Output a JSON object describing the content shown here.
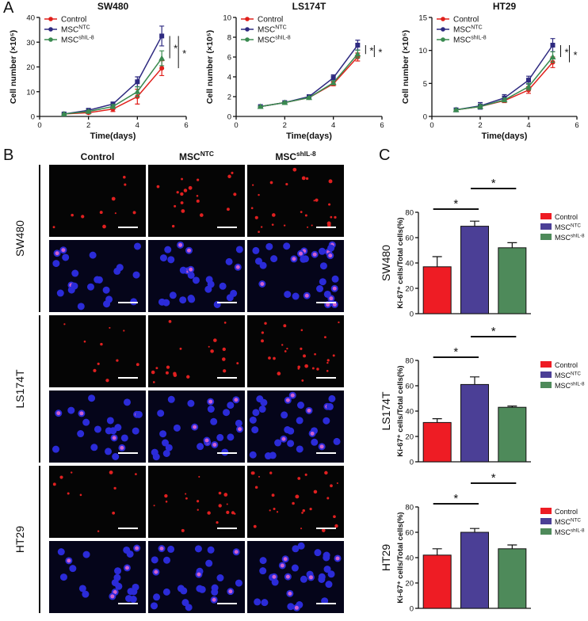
{
  "panels": {
    "a": "A",
    "b": "B",
    "c": "C"
  },
  "images": {
    "columns": [
      {
        "name": "Control"
      },
      {
        "name": "MSC",
        "sup": "NTC"
      },
      {
        "name": "MSC",
        "sup": "shIL-8"
      }
    ],
    "rows": [
      "SW480",
      "LS174T",
      "HT29"
    ]
  },
  "chart_data": [
    {
      "type": "line",
      "title": "SW480",
      "xlabel": "Time(days)",
      "ylabel": "Cell number (×10⁵)",
      "x": [
        1,
        2,
        3,
        4,
        5
      ],
      "xlim": [
        0,
        6
      ],
      "xticks": [
        0,
        2,
        4,
        6
      ],
      "ylim": [
        0,
        40
      ],
      "yticks": [
        0,
        10,
        20,
        30,
        40
      ],
      "series": [
        {
          "name": "Control",
          "color": "#e0201b",
          "marker": "circle",
          "values": [
            1,
            1.5,
            3,
            8,
            19.5
          ],
          "errors": [
            0.3,
            0.5,
            1,
            3,
            3
          ]
        },
        {
          "name": "MSC",
          "sup": "NTC",
          "color": "#2e2a80",
          "marker": "square",
          "values": [
            1,
            2.5,
            5,
            14,
            32.5
          ],
          "errors": [
            0.3,
            0.5,
            0.8,
            2,
            4
          ]
        },
        {
          "name": "MSC",
          "sup": "shIL-8",
          "color": "#3a8a50",
          "marker": "triangle",
          "values": [
            1,
            2,
            4,
            10,
            23.5
          ],
          "errors": [
            0.3,
            0.5,
            0.8,
            2,
            3
          ]
        }
      ],
      "annotations": [
        "*",
        "*"
      ]
    },
    {
      "type": "line",
      "title": "LS174T",
      "xlabel": "Time(days)",
      "ylabel": "Cell number (×10⁵)",
      "x": [
        1,
        2,
        3,
        4,
        5
      ],
      "xlim": [
        0,
        6
      ],
      "xticks": [
        0,
        2,
        4,
        6
      ],
      "ylim": [
        0,
        10
      ],
      "yticks": [
        0,
        2,
        4,
        6,
        8,
        10
      ],
      "series": [
        {
          "name": "Control",
          "color": "#e0201b",
          "marker": "circle",
          "values": [
            1,
            1.4,
            1.9,
            3.3,
            6
          ],
          "errors": [
            0.05,
            0.1,
            0.1,
            0.2,
            0.4
          ]
        },
        {
          "name": "MSC",
          "sup": "NTC",
          "color": "#2e2a80",
          "marker": "square",
          "values": [
            1,
            1.4,
            2,
            3.9,
            7.2
          ],
          "errors": [
            0.05,
            0.1,
            0.1,
            0.3,
            0.5
          ]
        },
        {
          "name": "MSC",
          "sup": "shIL-8",
          "color": "#3a8a50",
          "marker": "triangle",
          "values": [
            1,
            1.4,
            1.9,
            3.4,
            6.3
          ],
          "errors": [
            0.05,
            0.1,
            0.1,
            0.2,
            0.4
          ]
        }
      ],
      "annotations": [
        "*",
        "*"
      ]
    },
    {
      "type": "line",
      "title": "HT29",
      "xlabel": "Time(days)",
      "ylabel": "Cell number (×10⁵)",
      "x": [
        1,
        2,
        3,
        4,
        5
      ],
      "xlim": [
        0,
        6
      ],
      "xticks": [
        0,
        2,
        4,
        6
      ],
      "ylim": [
        0,
        15
      ],
      "yticks": [
        0,
        5,
        10,
        15
      ],
      "series": [
        {
          "name": "Control",
          "color": "#e0201b",
          "marker": "circle",
          "values": [
            1,
            1.5,
            2.4,
            4,
            8.2
          ],
          "errors": [
            0.1,
            0.3,
            0.3,
            0.5,
            0.8
          ]
        },
        {
          "name": "MSC",
          "sup": "NTC",
          "color": "#2e2a80",
          "marker": "square",
          "values": [
            1,
            1.6,
            2.8,
            5.5,
            10.8
          ],
          "errors": [
            0.1,
            0.5,
            0.5,
            0.6,
            1
          ]
        },
        {
          "name": "MSC",
          "sup": "shIL-8",
          "color": "#3a8a50",
          "marker": "triangle",
          "values": [
            1,
            1.5,
            2.5,
            4.5,
            9
          ],
          "errors": [
            0.1,
            0.3,
            0.3,
            0.5,
            0.8
          ]
        }
      ],
      "annotations": [
        "*",
        "*"
      ]
    },
    {
      "type": "bar",
      "title": "SW480",
      "ylabel": "Ki-67⁺ cells/Total cells(%)",
      "ylim": [
        0,
        80
      ],
      "yticks": [
        0,
        20,
        40,
        60,
        80
      ],
      "series": [
        {
          "name": "Control",
          "color": "#ee1c24",
          "values": [
            37
          ],
          "errors": [
            8
          ]
        },
        {
          "name": "MSC",
          "sup": "NTC",
          "color": "#4b3f96",
          "values": [
            69
          ],
          "errors": [
            4
          ]
        },
        {
          "name": "MSC",
          "sup": "shIL-8",
          "color": "#4e8a5a",
          "values": [
            52
          ],
          "errors": [
            4
          ]
        }
      ],
      "annotations": [
        "*",
        "*"
      ]
    },
    {
      "type": "bar",
      "title": "LS174T",
      "ylabel": "Ki-67⁺ cells/Total cells(%)",
      "ylim": [
        0,
        80
      ],
      "yticks": [
        0,
        20,
        40,
        60,
        80
      ],
      "series": [
        {
          "name": "Control",
          "color": "#ee1c24",
          "values": [
            31
          ],
          "errors": [
            3
          ]
        },
        {
          "name": "MSC",
          "sup": "NTC",
          "color": "#4b3f96",
          "values": [
            61
          ],
          "errors": [
            6
          ]
        },
        {
          "name": "MSC",
          "sup": "shIL-8",
          "color": "#4e8a5a",
          "values": [
            43
          ],
          "errors": [
            1
          ]
        }
      ],
      "annotations": [
        "*",
        "*"
      ]
    },
    {
      "type": "bar",
      "title": "HT29",
      "ylabel": "Ki-67⁺ cells/Total cells(%)",
      "ylim": [
        0,
        80
      ],
      "yticks": [
        0,
        20,
        40,
        60,
        80
      ],
      "series": [
        {
          "name": "Control",
          "color": "#ee1c24",
          "values": [
            42
          ],
          "errors": [
            5
          ]
        },
        {
          "name": "MSC",
          "sup": "NTC",
          "color": "#4b3f96",
          "values": [
            60
          ],
          "errors": [
            3
          ]
        },
        {
          "name": "MSC",
          "sup": "shIL-8",
          "color": "#4e8a5a",
          "values": [
            47
          ],
          "errors": [
            3
          ]
        }
      ],
      "annotations": [
        "*",
        "*"
      ]
    }
  ]
}
